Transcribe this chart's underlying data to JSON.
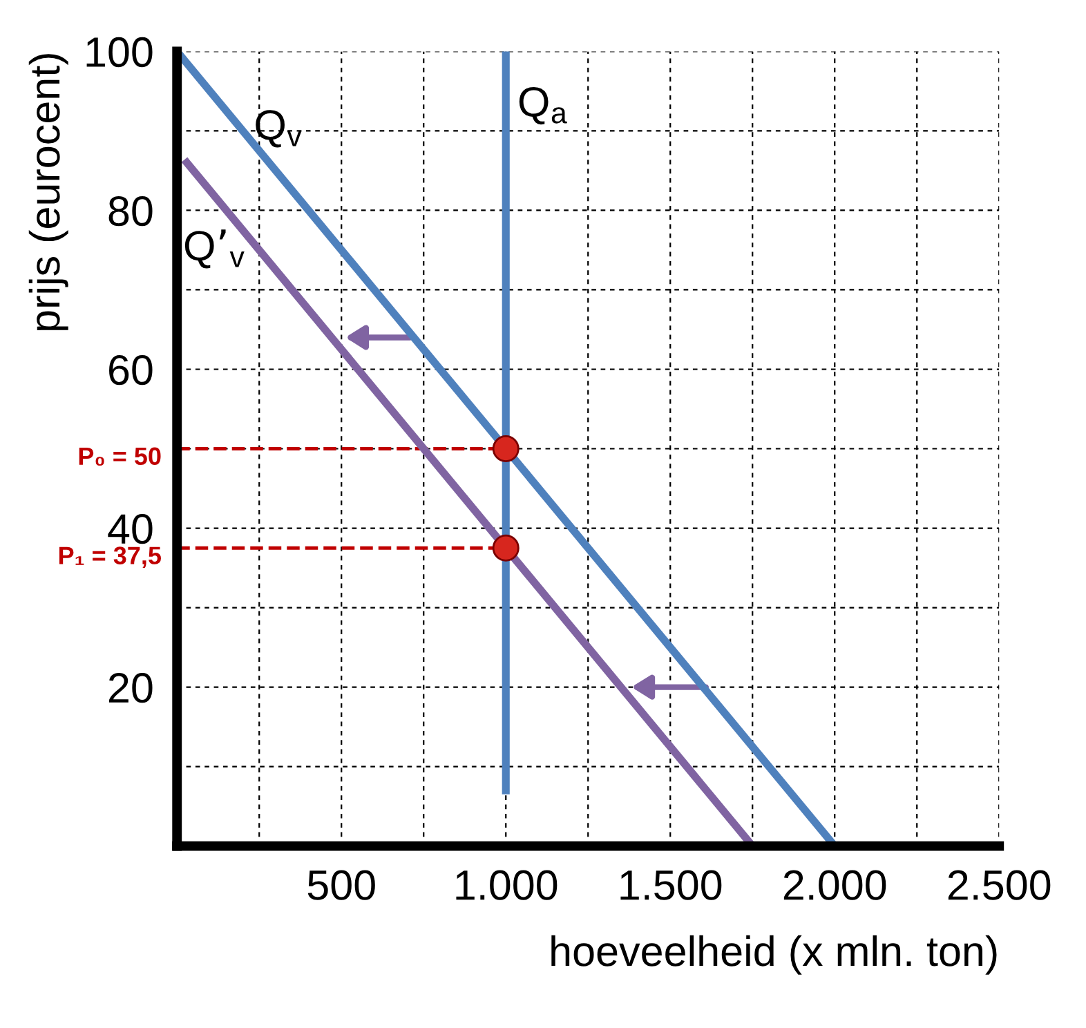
{
  "chart_data": {
    "type": "line",
    "xlabel": "hoeveelheid (x mln. ton)",
    "ylabel": "prijs (eurocent)",
    "series": [
      {
        "name": "Q$_{v}$",
        "color": "#4f81bd",
        "x": [
          0,
          2000
        ],
        "values": [
          100,
          0
        ]
      },
      {
        "name": "Q’$_{v}$",
        "color": "#8064a2",
        "x": [
          30,
          1750
        ],
        "values": [
          86,
          0
        ]
      },
      {
        "name": "Q$_{a}$",
        "color": "#4f81bd",
        "x": [
          1000,
          1000
        ],
        "values": [
          100,
          7
        ]
      },
      {
        "type": "scatter",
        "color": "#d7261e",
        "x": [
          1000,
          1000
        ],
        "values": [
          50,
          37.5
        ],
        "marker": "circle"
      }
    ],
    "ref_lines": [
      {
        "axis": "y",
        "value": 50,
        "label": "P₀ = 50",
        "color": "#c00000",
        "line_style": "dashed"
      },
      {
        "axis": "y",
        "value": 37.5,
        "label": "P₁ = 37,5",
        "color": "#c00000",
        "line_style": "dashed"
      }
    ],
    "xlim": [
      0,
      2500
    ],
    "ylim": [
      0,
      100
    ],
    "xticks": [
      {
        "value": 250,
        "label": null
      },
      {
        "value": 500,
        "label": "500"
      },
      {
        "value": 750,
        "label": null
      },
      {
        "value": 1000,
        "label": "1.000"
      },
      {
        "value": 1250,
        "label": null
      },
      {
        "value": 1500,
        "label": "1.500"
      },
      {
        "value": 1750,
        "label": null
      },
      {
        "value": 2000,
        "label": "2.000"
      },
      {
        "value": 2250,
        "label": null
      },
      {
        "value": 2500,
        "label": "2.500"
      }
    ],
    "yticks": [
      {
        "value": 10,
        "label": null
      },
      20,
      {
        "value": 30,
        "label": null
      },
      40,
      {
        "value": 50,
        "label": null
      },
      60,
      {
        "value": 70,
        "label": null
      },
      80,
      {
        "value": 90,
        "label": null
      },
      100
    ],
    "grid": true,
    "line_style": "solid"
  }
}
